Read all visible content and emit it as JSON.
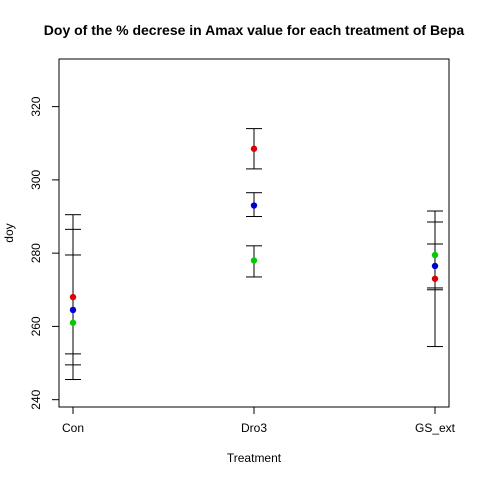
{
  "chart_data": {
    "type": "scatter",
    "title": "Doy of the % decrese in Amax value for each treatment of Bepa",
    "xlabel": "Treatment",
    "ylabel": "doy",
    "categories": [
      "Con",
      "Dro3",
      "GS_ext"
    ],
    "ylim": [
      238,
      333
    ],
    "yticks": [
      240,
      260,
      280,
      300,
      320
    ],
    "grid": false,
    "legend": "none",
    "series": [
      {
        "color": "#dd0000",
        "values": [
          268,
          308.5,
          273
        ],
        "err_low": [
          249.5,
          303,
          254.5
        ],
        "err_high": [
          286.5,
          314,
          291.5
        ]
      },
      {
        "color": "#0000cc",
        "values": [
          264.5,
          293,
          276.5
        ],
        "err_low": [
          252.5,
          290,
          270
        ],
        "err_high": [
          279.5,
          296.5,
          288.5
        ]
      },
      {
        "color": "#00cc00",
        "values": [
          261,
          278,
          279.5
        ],
        "err_low": [
          245.5,
          273.5,
          270.5
        ],
        "err_high": [
          290.5,
          282,
          282.5
        ]
      }
    ]
  }
}
